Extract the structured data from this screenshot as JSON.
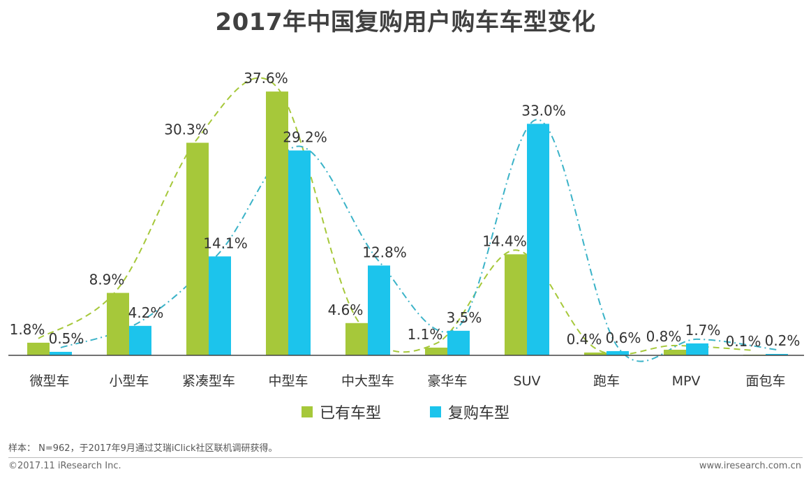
{
  "chart_data": {
    "type": "bar",
    "title": "2017年中国复购用户购车车型变化",
    "categories": [
      "微型车",
      "小型车",
      "紧凑型车",
      "中型车",
      "中大型车",
      "豪华车",
      "SUV",
      "跑车",
      "MPV",
      "面包车"
    ],
    "series": [
      {
        "name": "已有车型",
        "values": [
          1.8,
          8.9,
          30.3,
          37.6,
          4.6,
          1.1,
          14.4,
          0.4,
          0.8,
          0.1
        ],
        "labels": [
          "1.8%",
          "8.9%",
          "30.3%",
          "37.6%",
          "4.6%",
          "1.1%",
          "14.4%",
          "0.4%",
          "0.8%",
          "0.1%"
        ],
        "color": "#a6c83a",
        "trend_color": "#a6c83a"
      },
      {
        "name": "复购车型",
        "values": [
          0.5,
          4.2,
          14.1,
          29.2,
          12.8,
          3.5,
          33.0,
          0.6,
          1.7,
          0.2
        ],
        "labels": [
          "0.5%",
          "4.2%",
          "14.1%",
          "29.2%",
          "12.8%",
          "3.5%",
          "33.0%",
          "0.6%",
          "1.7%",
          "0.2%"
        ],
        "color": "#1cc4ec",
        "trend_color": "#3bb3c8"
      }
    ],
    "ylim": [
      0,
      40
    ],
    "xlabel": "",
    "ylabel": "",
    "legend": "bottom-center",
    "grid": false
  },
  "legend": {
    "items": [
      {
        "label": "已有车型",
        "color": "#a6c83a"
      },
      {
        "label": "复购车型",
        "color": "#1cc4ec"
      }
    ]
  },
  "footer": {
    "note": "样本： N=962，于2017年9月通过艾瑞iClick社区联机调研获得。",
    "copyright": "©2017.11 iResearch Inc.",
    "website": "www.iresearch.com.cn"
  }
}
